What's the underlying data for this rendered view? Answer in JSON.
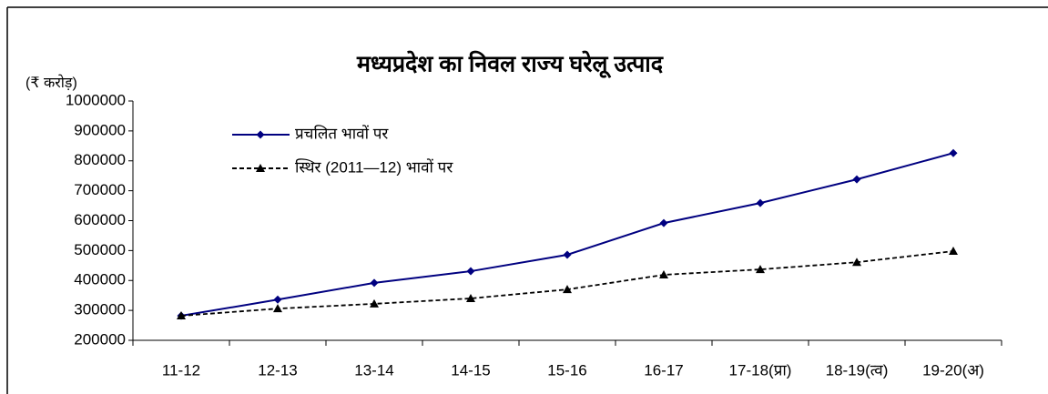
{
  "chart_data": {
    "type": "line",
    "title": "मध्यप्रदेश का निवल राज्य घरेलू उत्पाद",
    "y_axis_label": "(₹ करोड़)",
    "categories": [
      "11-12",
      "12-13",
      "13-14",
      "14-15",
      "15-16",
      "16-17",
      "17-18(प्रा)",
      "18-19(त्व)",
      "19-20(अ)"
    ],
    "series": [
      {
        "name": "प्रचलित भावों पर",
        "color": "#000080",
        "marker": "diamond",
        "dashed": false,
        "values": [
          282000,
          336000,
          392000,
          431000,
          486000,
          592000,
          659000,
          738000,
          826000
        ]
      },
      {
        "name": "स्थिर (2011—12) भावों पर",
        "color": "#000000",
        "marker": "triangle",
        "dashed": true,
        "values": [
          282000,
          306000,
          322000,
          340000,
          370000,
          419000,
          437000,
          461000,
          498000
        ]
      }
    ],
    "ylim": [
      200000,
      1000000
    ],
    "yticks": [
      200000,
      300000,
      400000,
      500000,
      600000,
      700000,
      800000,
      900000,
      1000000
    ],
    "grid": false,
    "legend": "upper left"
  }
}
